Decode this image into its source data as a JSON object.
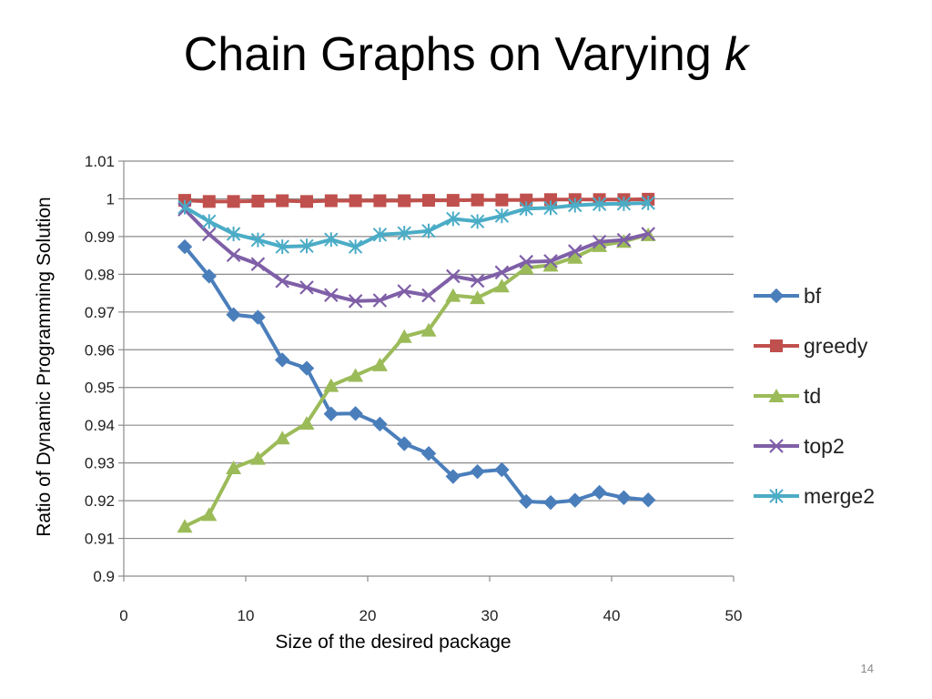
{
  "slide": {
    "title_main": "Chain Graphs on Varying ",
    "title_italic": "k",
    "number": "14"
  },
  "chart_data": {
    "type": "line",
    "xlabel": "Size of the desired package",
    "ylabel": "Ratio  of Dynamic Programming Solution",
    "xlim": [
      0,
      50
    ],
    "ylim": [
      0.9,
      1.01
    ],
    "xticks": [
      "0",
      "10",
      "20",
      "30",
      "40",
      "50"
    ],
    "yticks": [
      "0.9",
      "0.91",
      "0.92",
      "0.93",
      "0.94",
      "0.95",
      "0.96",
      "0.97",
      "0.98",
      "0.99",
      "1",
      "1.01"
    ],
    "grid": "horizontal",
    "legend": "right",
    "x": [
      5,
      7,
      9,
      11,
      13,
      15,
      17,
      19,
      21,
      23,
      25,
      27,
      29,
      31,
      33,
      35,
      37,
      39,
      41,
      43
    ],
    "series": [
      {
        "name": "bf",
        "color": "#4a7ebb",
        "marker": "diamond",
        "values": [
          0.9873,
          0.9795,
          0.9693,
          0.9686,
          0.9573,
          0.9551,
          0.943,
          0.9431,
          0.9403,
          0.9351,
          0.9325,
          0.9264,
          0.9277,
          0.9282,
          0.9198,
          0.9195,
          0.9201,
          0.9222,
          0.9208,
          0.9202
        ]
      },
      {
        "name": "greedy",
        "color": "#c0504d",
        "marker": "square",
        "values": [
          0.9996,
          0.9993,
          0.9993,
          0.9994,
          0.9995,
          0.9993,
          0.9995,
          0.9995,
          0.9995,
          0.9995,
          0.9996,
          0.9996,
          0.9997,
          0.9997,
          0.9997,
          0.9998,
          0.9998,
          0.9998,
          0.9998,
          0.9999
        ]
      },
      {
        "name": "td",
        "color": "#9bbb59",
        "marker": "triangle",
        "values": [
          0.9132,
          0.9163,
          0.9287,
          0.9312,
          0.9366,
          0.9405,
          0.9505,
          0.9532,
          0.956,
          0.9635,
          0.9652,
          0.9744,
          0.9738,
          0.9769,
          0.9817,
          0.9824,
          0.9845,
          0.9876,
          0.9887,
          0.9905
        ]
      },
      {
        "name": "top2",
        "color": "#7f5fa7",
        "marker": "x",
        "values": [
          0.9972,
          0.9906,
          0.9851,
          0.9827,
          0.9782,
          0.9765,
          0.9745,
          0.9729,
          0.9731,
          0.9755,
          0.9744,
          0.9795,
          0.9783,
          0.9805,
          0.9833,
          0.9835,
          0.9861,
          0.9886,
          0.9891,
          0.9907
        ]
      },
      {
        "name": "merge2",
        "color": "#4bacc6",
        "marker": "star",
        "values": [
          0.9978,
          0.994,
          0.9907,
          0.9891,
          0.9873,
          0.9875,
          0.9892,
          0.9873,
          0.9905,
          0.9909,
          0.9915,
          0.9947,
          0.994,
          0.9955,
          0.9974,
          0.9976,
          0.9983,
          0.9986,
          0.9987,
          0.9989
        ]
      }
    ]
  }
}
